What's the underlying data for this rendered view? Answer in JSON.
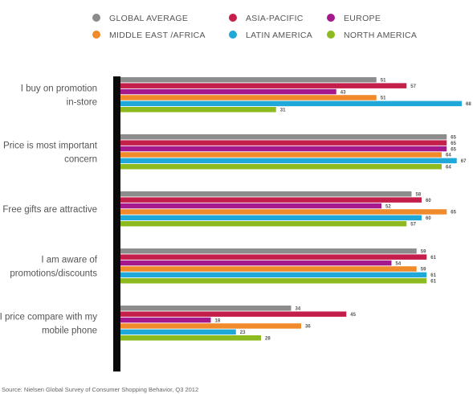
{
  "chart_data": {
    "type": "bar",
    "orientation": "horizontal",
    "categories": [
      [
        "I buy on promotion",
        "in-store"
      ],
      [
        "Price is most important",
        "concern"
      ],
      [
        "Free gifts are attractive"
      ],
      [
        "I am aware of",
        "promotions/discounts"
      ],
      [
        "I price compare with my",
        "mobile phone"
      ]
    ],
    "series": [
      {
        "name": "GLOBAL AVERAGE",
        "color": "#8c8c8c",
        "values": [
          51,
          65,
          58,
          59,
          34
        ]
      },
      {
        "name": "ASIA-PACIFIC",
        "color": "#c41e4a",
        "values": [
          57,
          65,
          60,
          61,
          45
        ]
      },
      {
        "name": "EUROPE",
        "color": "#a6198c",
        "values": [
          43,
          65,
          52,
          54,
          18
        ]
      },
      {
        "name": "MIDDLE EAST /AFRICA",
        "color": "#f08a2a",
        "values": [
          51,
          64,
          65,
          59,
          36
        ]
      },
      {
        "name": "LATIN AMERICA",
        "color": "#1fa8d8",
        "values": [
          68,
          67,
          60,
          61,
          23
        ]
      },
      {
        "name": "NORTH AMERICA",
        "color": "#8dba1e",
        "values": [
          31,
          64,
          57,
          61,
          28
        ]
      }
    ],
    "xlim": [
      0,
      70
    ],
    "legend_position": "top",
    "grid": false,
    "source": "Source: Nielsen Global Survey of Consumer Shopping Behavior, Q3 2012"
  }
}
